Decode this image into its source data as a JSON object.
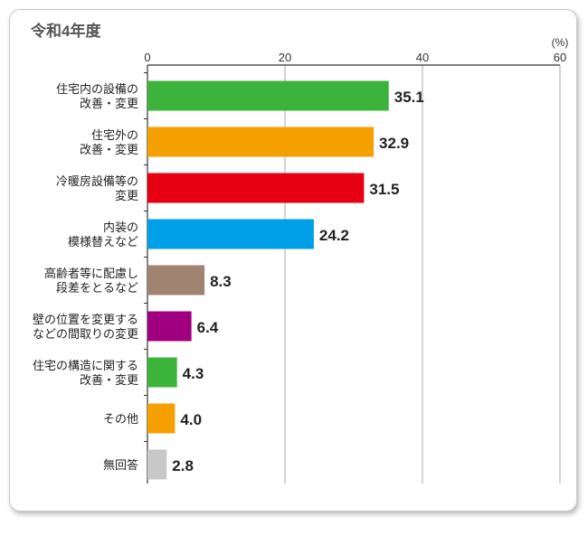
{
  "chart_data": {
    "type": "bar",
    "orientation": "horizontal",
    "title": "令和4年度",
    "unit": "(%)",
    "xlim": [
      0,
      60
    ],
    "ticks": [
      0,
      20,
      40,
      60
    ],
    "grid": true,
    "categories": [
      [
        "住宅内の設備の",
        "改善・変更"
      ],
      [
        "住宅外の",
        "改善・変更"
      ],
      [
        "冷暖房設備等の",
        "変更"
      ],
      [
        "内装の",
        "模様替えなど"
      ],
      [
        "高齢者等に配慮し",
        "段差をとるなど"
      ],
      [
        "壁の位置を変更する",
        "などの間取りの変更"
      ],
      [
        "住宅の構造に関する",
        "改善・変更"
      ],
      [
        "その他"
      ],
      [
        "無回答"
      ]
    ],
    "values": [
      35.1,
      32.9,
      31.5,
      24.2,
      8.3,
      6.4,
      4.3,
      4.0,
      2.8
    ],
    "value_labels": [
      "35.1",
      "32.9",
      "31.5",
      "24.2",
      "8.3",
      "6.4",
      "4.3",
      "4.0",
      "2.8"
    ],
    "colors": [
      "#3cb43c",
      "#f5a000",
      "#e60012",
      "#00a0e9",
      "#a08370",
      "#a0007f",
      "#3cb43c",
      "#f5a000",
      "#c8c8c8"
    ]
  }
}
